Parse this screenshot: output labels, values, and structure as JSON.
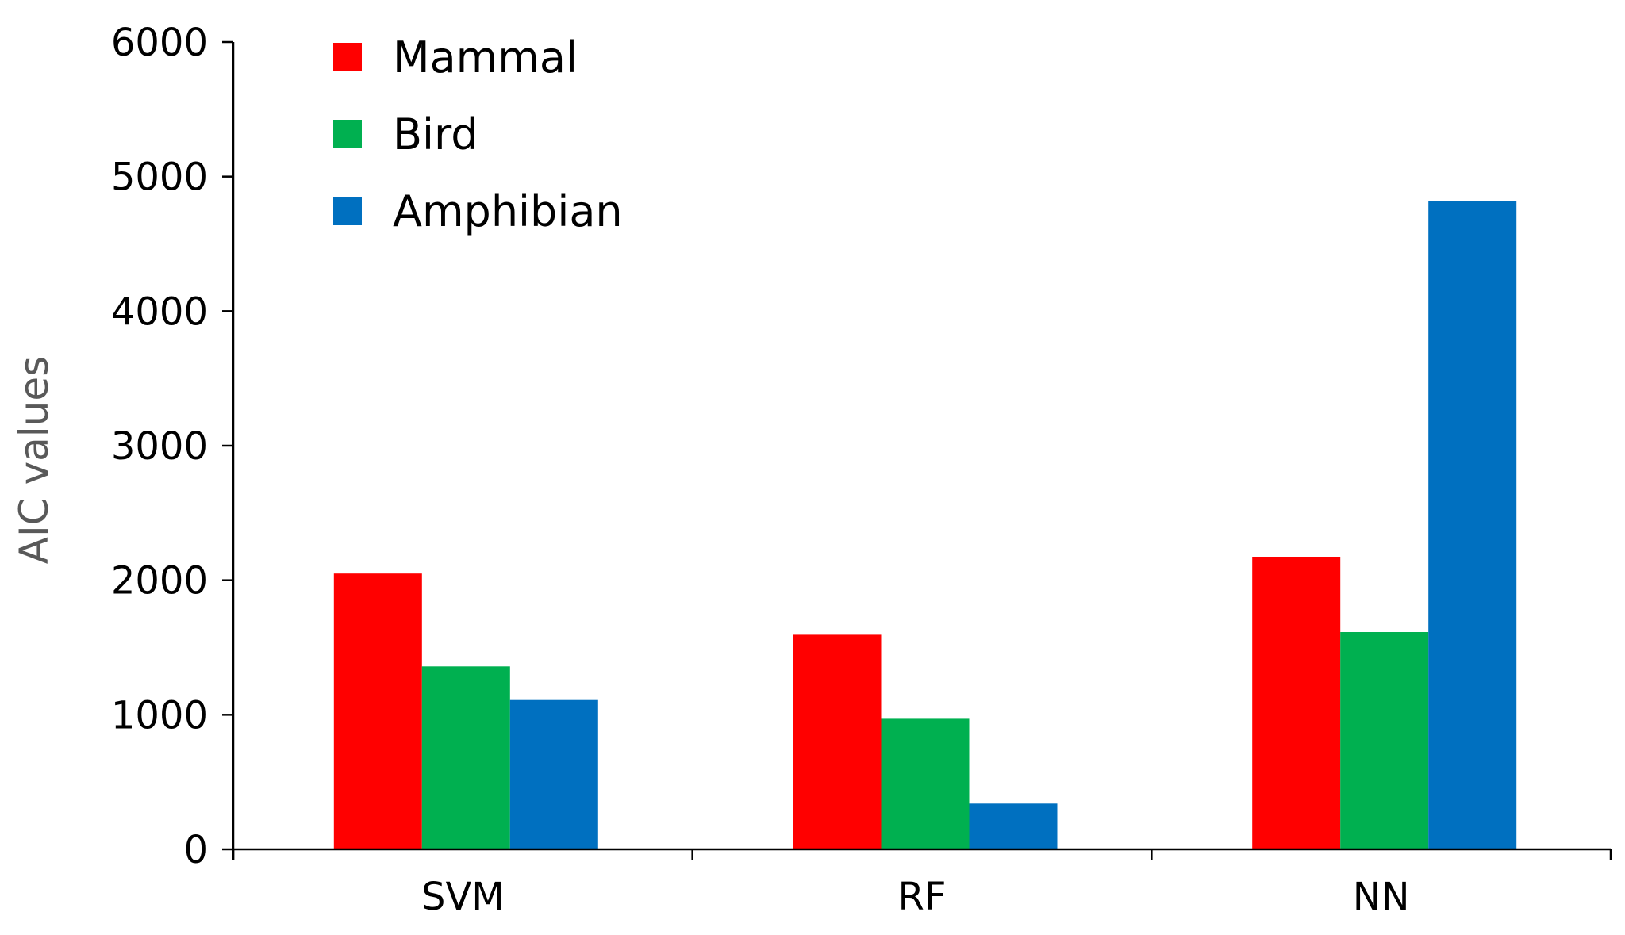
{
  "chart_data": {
    "type": "bar",
    "title": "",
    "xlabel": "",
    "ylabel": "AIC values",
    "categories": [
      "SVM",
      "RF",
      "NN"
    ],
    "ylim": [
      0,
      6000
    ],
    "yticks": [
      0,
      1000,
      2000,
      3000,
      4000,
      5000,
      6000
    ],
    "grid": false,
    "legend_position": "top-left",
    "series": [
      {
        "name": "Mammal",
        "color": "#ff0000",
        "values": [
          2050,
          1595,
          2175
        ]
      },
      {
        "name": "Bird",
        "color": "#00b050",
        "values": [
          1360,
          970,
          1615
        ]
      },
      {
        "name": "Amphibian",
        "color": "#0070c0",
        "values": [
          1110,
          340,
          4820
        ]
      }
    ]
  }
}
